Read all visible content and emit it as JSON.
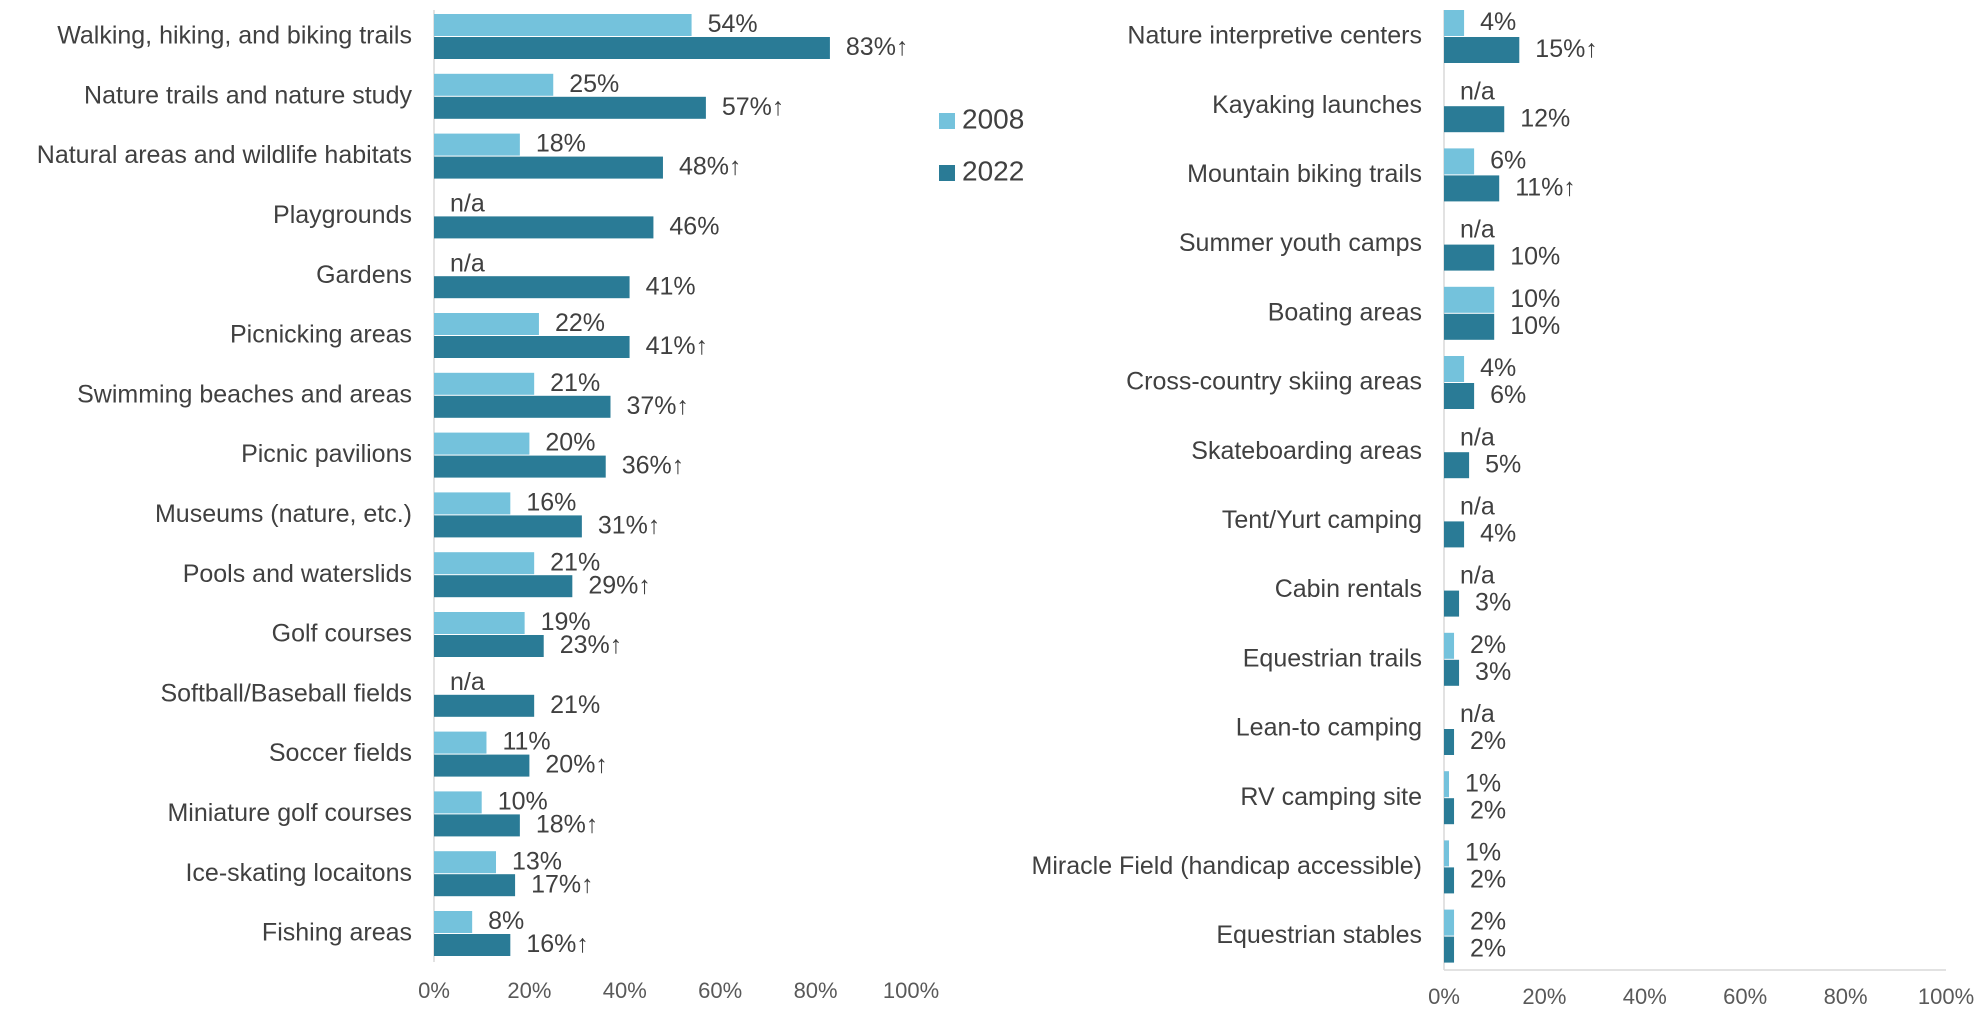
{
  "chart_data": [
    {
      "type": "bar",
      "orientation": "horizontal",
      "categories": [
        "Walking, hiking, and biking trails",
        "Nature trails and nature study",
        "Natural areas and wildlife habitats",
        "Playgrounds",
        "Gardens",
        "Picnicking areas",
        "Swimming beaches and areas",
        "Picnic pavilions",
        "Museums (nature, etc.)",
        "Pools and waterslids",
        "Golf courses",
        "Softball/Baseball fields",
        "Soccer fields",
        "Miniature golf courses",
        "Ice-skating locaitons",
        "Fishing areas"
      ],
      "series": [
        {
          "name": "2008",
          "color": "#74c2dc",
          "values": [
            54,
            25,
            18,
            null,
            null,
            22,
            21,
            20,
            16,
            21,
            19,
            null,
            11,
            10,
            13,
            8
          ],
          "value_labels": [
            "54%",
            "25%",
            "18%",
            "n/a",
            "n/a",
            "22%",
            "21%",
            "20%",
            "16%",
            "21%",
            "19%",
            "n/a",
            "11%",
            "10%",
            "13%",
            "8%"
          ]
        },
        {
          "name": "2022",
          "color": "#2a7b96",
          "values": [
            83,
            57,
            48,
            46,
            41,
            41,
            37,
            36,
            31,
            29,
            23,
            21,
            20,
            18,
            17,
            16
          ],
          "value_labels": [
            "83%↑",
            "57%↑",
            "48%↑",
            "46%",
            "41%",
            "41%↑",
            "37%↑",
            "36%↑",
            "31%↑",
            "29%↑",
            "23%↑",
            "21%",
            "20%↑",
            "18%↑",
            "17%↑",
            "16%↑"
          ]
        }
      ],
      "xlim": [
        0,
        100
      ],
      "xticks": [
        {
          "value": 0,
          "label": "0%"
        },
        {
          "value": 20,
          "label": "20%"
        },
        {
          "value": 40,
          "label": "40%"
        },
        {
          "value": 60,
          "label": "60%"
        },
        {
          "value": 80,
          "label": "80%"
        },
        {
          "value": 100,
          "label": "100%"
        }
      ],
      "legend": "right"
    },
    {
      "type": "bar",
      "orientation": "horizontal",
      "categories": [
        "Nature interpretive centers",
        "Kayaking launches",
        "Mountain biking trails",
        "Summer youth camps",
        "Boating areas",
        "Cross-country skiing areas",
        "Skateboarding areas",
        "Tent/Yurt camping",
        "Cabin rentals",
        "Equestrian trails",
        "Lean-to camping",
        "RV camping site",
        "Miracle Field (handicap accessible)",
        "Equestrian stables"
      ],
      "series": [
        {
          "color": "#74c2dc",
          "values": [
            4,
            null,
            6,
            null,
            10,
            4,
            null,
            null,
            null,
            2,
            null,
            1,
            1,
            2
          ],
          "value_labels": [
            "4%",
            "n/a",
            "6%",
            "n/a",
            "10%",
            "4%",
            "n/a",
            "n/a",
            "n/a",
            "2%",
            "n/a",
            "1%",
            "1%",
            "2%"
          ]
        },
        {
          "color": "#2a7b96",
          "values": [
            15,
            12,
            11,
            10,
            10,
            6,
            5,
            4,
            3,
            3,
            2,
            2,
            2,
            2
          ],
          "value_labels": [
            "15%↑",
            "12%",
            "11%↑",
            "10%",
            "10%",
            "6%",
            "5%",
            "4%",
            "3%",
            "3%",
            "2%",
            "2%",
            "2%",
            "2%"
          ]
        }
      ],
      "xlim": [
        0,
        100
      ],
      "xticks": [
        {
          "value": 0,
          "label": "0%"
        },
        {
          "value": 20,
          "label": "20%"
        },
        {
          "value": 40,
          "label": "40%"
        },
        {
          "value": 60,
          "label": "60%"
        },
        {
          "value": 80,
          "label": "80%"
        },
        {
          "value": 100,
          "label": "100%"
        }
      ]
    }
  ]
}
